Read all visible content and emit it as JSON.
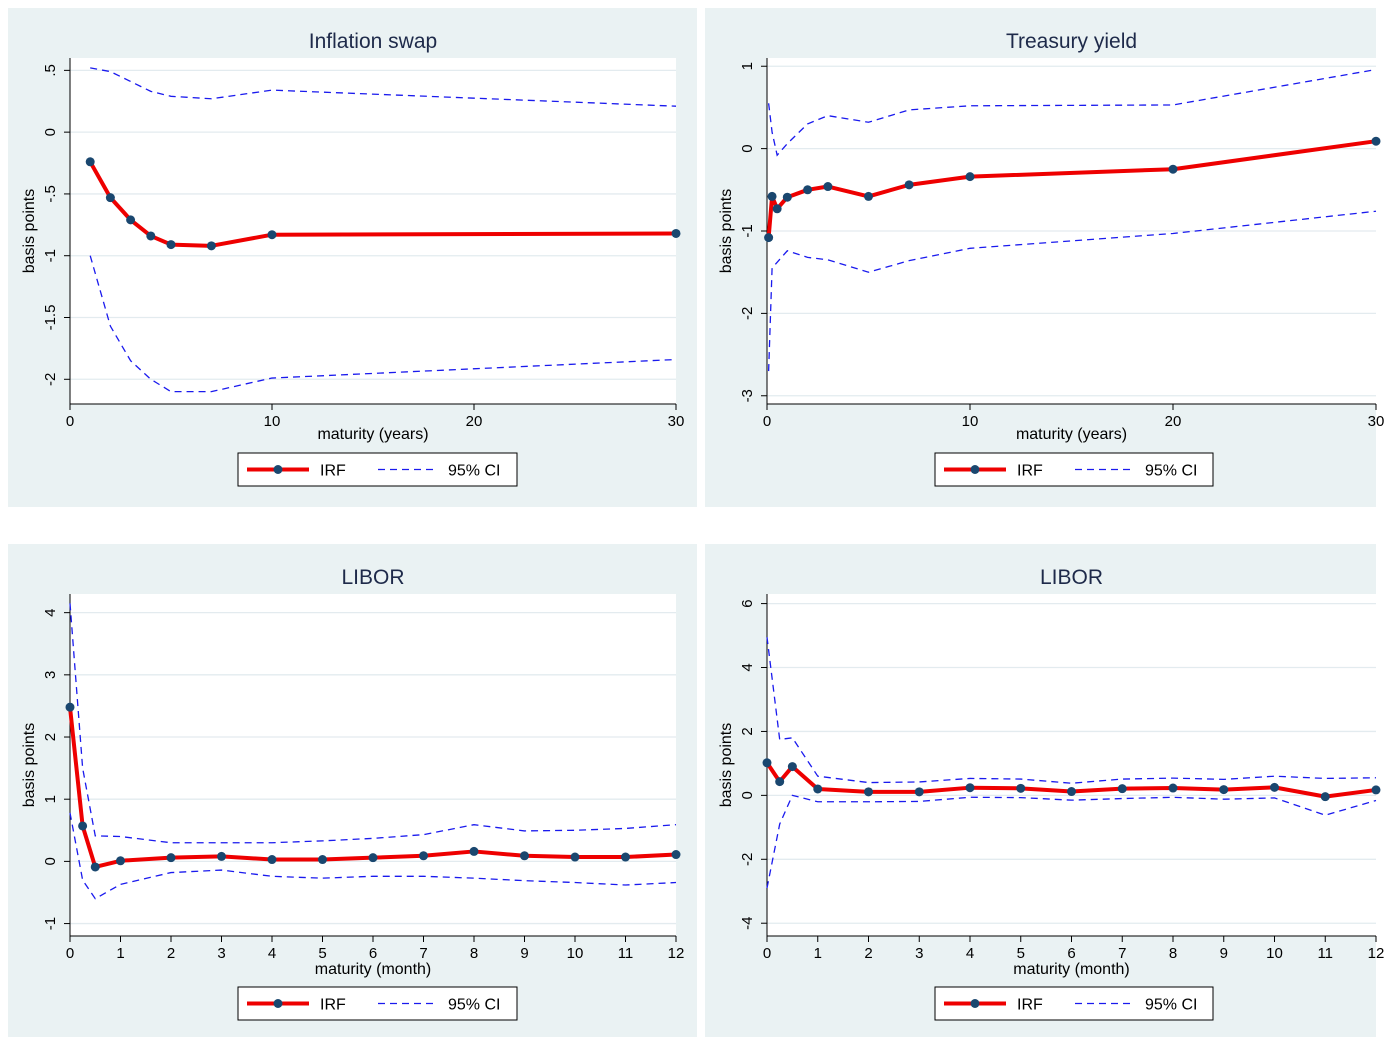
{
  "colors": {
    "irf": "#ee0000",
    "ci": "#1a1aee",
    "marker": "#1a476f",
    "panel_bg": "#eaf2f3",
    "plot_bg": "#ffffff",
    "grid": "#e3ebef"
  },
  "legend": {
    "irf": "IRF",
    "ci": "95% CI"
  },
  "chart_data": [
    {
      "type": "line",
      "title": "Inflation swap",
      "xlabel": "maturity (years)",
      "ylabel": "basis points",
      "xlim": [
        0,
        30
      ],
      "ylim": [
        -2.2,
        0.6
      ],
      "x_ticks": [
        0,
        10,
        20,
        30
      ],
      "x_tick_labels": [
        "0",
        "10",
        "20",
        "30"
      ],
      "y_ticks": [
        0.5,
        0,
        -0.5,
        -1,
        -1.5,
        -2
      ],
      "y_tick_labels": [
        ".5",
        "0",
        "-.5",
        "-1",
        "-1.5",
        "-2"
      ],
      "grid": true,
      "legend_position": "bottom",
      "series": [
        {
          "name": "IRF",
          "x": [
            1,
            2,
            3,
            4,
            5,
            7,
            10,
            30
          ],
          "y": [
            -0.24,
            -0.53,
            -0.71,
            -0.84,
            -0.91,
            -0.92,
            -0.83,
            -0.82
          ]
        },
        {
          "name": "95% CI",
          "x": [
            1,
            2,
            3,
            4,
            5,
            7,
            10,
            30
          ],
          "y": [
            0.52,
            0.49,
            0.41,
            0.33,
            0.29,
            0.27,
            0.34,
            0.21
          ]
        },
        {
          "name": "95% CI",
          "x": [
            1,
            2,
            3,
            4,
            5,
            7,
            10,
            30
          ],
          "y": [
            -1.0,
            -1.57,
            -1.85,
            -2.0,
            -2.1,
            -2.1,
            -1.99,
            -1.84
          ]
        }
      ]
    },
    {
      "type": "line",
      "title": "Treasury yield",
      "xlabel": "maturity (years)",
      "ylabel": "basis points",
      "xlim": [
        0,
        30
      ],
      "ylim": [
        -3.1,
        1.1
      ],
      "x_ticks": [
        0,
        10,
        20,
        30
      ],
      "x_tick_labels": [
        "0",
        "10",
        "20",
        "30"
      ],
      "y_ticks": [
        1,
        0,
        -1,
        -2,
        -3
      ],
      "y_tick_labels": [
        "1",
        "0",
        "-1",
        "-2",
        "-3"
      ],
      "grid": true,
      "legend_position": "bottom",
      "series": [
        {
          "name": "IRF",
          "x": [
            0.08,
            0.25,
            0.5,
            1,
            2,
            3,
            5,
            7,
            10,
            20,
            30
          ],
          "y": [
            -1.08,
            -0.58,
            -0.73,
            -0.59,
            -0.5,
            -0.46,
            -0.58,
            -0.44,
            -0.34,
            -0.25,
            0.09
          ]
        },
        {
          "name": "95% CI",
          "x": [
            0.08,
            0.25,
            0.5,
            1,
            2,
            3,
            5,
            7,
            10,
            20,
            30
          ],
          "y": [
            0.55,
            0.2,
            -0.08,
            0.06,
            0.3,
            0.4,
            0.32,
            0.47,
            0.52,
            0.53,
            0.96
          ]
        },
        {
          "name": "95% CI",
          "x": [
            0.08,
            0.25,
            0.5,
            1,
            2,
            3,
            5,
            7,
            10,
            20,
            30
          ],
          "y": [
            -2.7,
            -1.45,
            -1.38,
            -1.24,
            -1.32,
            -1.35,
            -1.5,
            -1.36,
            -1.21,
            -1.03,
            -0.76
          ]
        }
      ]
    },
    {
      "type": "line",
      "title": "LIBOR",
      "xlabel": "maturity (month)",
      "ylabel": "basis points",
      "xlim": [
        0,
        12
      ],
      "ylim": [
        -1.2,
        4.3
      ],
      "x_ticks": [
        0,
        1,
        2,
        3,
        4,
        5,
        6,
        7,
        8,
        9,
        10,
        11,
        12
      ],
      "x_tick_labels": [
        "0",
        "1",
        "2",
        "3",
        "4",
        "5",
        "6",
        "7",
        "8",
        "9",
        "10",
        "11",
        "12"
      ],
      "y_ticks": [
        4,
        3,
        2,
        1,
        0,
        -1
      ],
      "y_tick_labels": [
        "4",
        "3",
        "2",
        "1",
        "0",
        "-1"
      ],
      "grid": true,
      "legend_position": "bottom",
      "series": [
        {
          "name": "IRF",
          "x": [
            0,
            0.25,
            0.5,
            1,
            2,
            3,
            4,
            5,
            6,
            7,
            8,
            9,
            10,
            11,
            12
          ],
          "y": [
            2.48,
            0.57,
            -0.09,
            0.01,
            0.06,
            0.08,
            0.03,
            0.03,
            0.06,
            0.09,
            0.16,
            0.09,
            0.07,
            0.07,
            0.11
          ]
        },
        {
          "name": "95% CI",
          "x": [
            0,
            0.25,
            0.5,
            1,
            2,
            3,
            4,
            5,
            6,
            7,
            8,
            9,
            10,
            11,
            12
          ],
          "y": [
            4.15,
            1.5,
            0.41,
            0.4,
            0.3,
            0.3,
            0.3,
            0.33,
            0.37,
            0.43,
            0.59,
            0.49,
            0.5,
            0.53,
            0.59
          ]
        },
        {
          "name": "95% CI",
          "x": [
            0,
            0.25,
            0.5,
            1,
            2,
            3,
            4,
            5,
            6,
            7,
            8,
            9,
            10,
            11,
            12
          ],
          "y": [
            0.78,
            -0.3,
            -0.6,
            -0.37,
            -0.18,
            -0.14,
            -0.24,
            -0.27,
            -0.24,
            -0.24,
            -0.27,
            -0.31,
            -0.34,
            -0.38,
            -0.34
          ]
        }
      ]
    },
    {
      "type": "line",
      "title": "LIBOR",
      "xlabel": "maturity (month)",
      "ylabel": "basis points",
      "xlim": [
        0,
        12
      ],
      "ylim": [
        -4.4,
        6.3
      ],
      "x_ticks": [
        0,
        1,
        2,
        3,
        4,
        5,
        6,
        7,
        8,
        9,
        10,
        11,
        12
      ],
      "x_tick_labels": [
        "0",
        "1",
        "2",
        "3",
        "4",
        "5",
        "6",
        "7",
        "8",
        "9",
        "10",
        "11",
        "12"
      ],
      "y_ticks": [
        6,
        4,
        2,
        0,
        -2,
        -4
      ],
      "y_tick_labels": [
        "6",
        "4",
        "2",
        "0",
        "-2",
        "-4"
      ],
      "grid": true,
      "legend_position": "bottom",
      "series": [
        {
          "name": "IRF",
          "x": [
            0,
            0.25,
            0.5,
            1,
            2,
            3,
            4,
            5,
            6,
            7,
            8,
            9,
            10,
            11,
            12
          ],
          "y": [
            1.02,
            0.43,
            0.9,
            0.2,
            0.11,
            0.11,
            0.24,
            0.22,
            0.12,
            0.21,
            0.23,
            0.18,
            0.25,
            -0.04,
            0.17
          ]
        },
        {
          "name": "95% CI",
          "x": [
            0,
            0.25,
            0.5,
            1,
            2,
            3,
            4,
            5,
            6,
            7,
            8,
            9,
            10,
            11,
            12
          ],
          "y": [
            4.95,
            1.75,
            1.8,
            0.6,
            0.4,
            0.42,
            0.53,
            0.51,
            0.38,
            0.51,
            0.54,
            0.5,
            0.6,
            0.53,
            0.55
          ]
        },
        {
          "name": "95% CI",
          "x": [
            0,
            0.25,
            0.5,
            1,
            2,
            3,
            4,
            5,
            6,
            7,
            8,
            9,
            10,
            11,
            12
          ],
          "y": [
            -2.9,
            -0.9,
            0.0,
            -0.2,
            -0.2,
            -0.19,
            -0.06,
            -0.07,
            -0.15,
            -0.1,
            -0.06,
            -0.12,
            -0.08,
            -0.62,
            -0.16
          ]
        }
      ]
    }
  ]
}
